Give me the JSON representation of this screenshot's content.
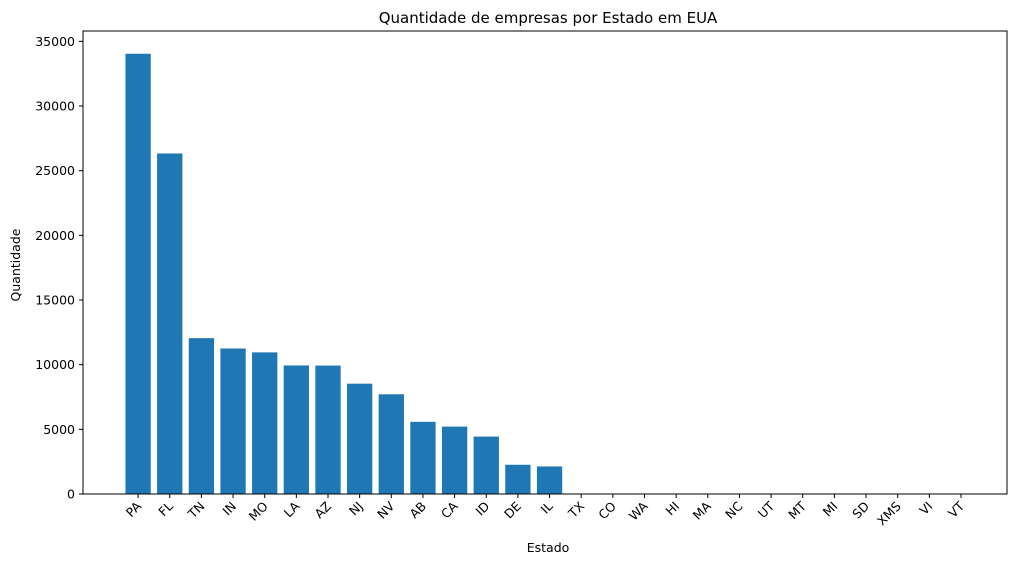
{
  "chart_data": {
    "type": "bar",
    "title": "Quantidade de empresas por Estado em EUA",
    "xlabel": "Estado",
    "ylabel": "Quantidade",
    "categories": [
      "PA",
      "FL",
      "TN",
      "IN",
      "MO",
      "LA",
      "AZ",
      "NJ",
      "NV",
      "AB",
      "CA",
      "ID",
      "DE",
      "IL",
      "TX",
      "CO",
      "WA",
      "HI",
      "MA",
      "NC",
      "UT",
      "MT",
      "MI",
      "SD",
      "XMS",
      "VI",
      "VT"
    ],
    "values": [
      34040,
      26330,
      12050,
      11250,
      10950,
      9940,
      9930,
      8530,
      7710,
      5580,
      5210,
      4440,
      2260,
      2130,
      4,
      2,
      2,
      2,
      2,
      1,
      1,
      1,
      1,
      1,
      1,
      1,
      1
    ],
    "ylim": [
      0,
      35800
    ],
    "yticks": [
      0,
      5000,
      10000,
      15000,
      20000,
      25000,
      30000,
      35000
    ],
    "bar_color": "#1f77b4",
    "grid": false,
    "legend": "none"
  }
}
